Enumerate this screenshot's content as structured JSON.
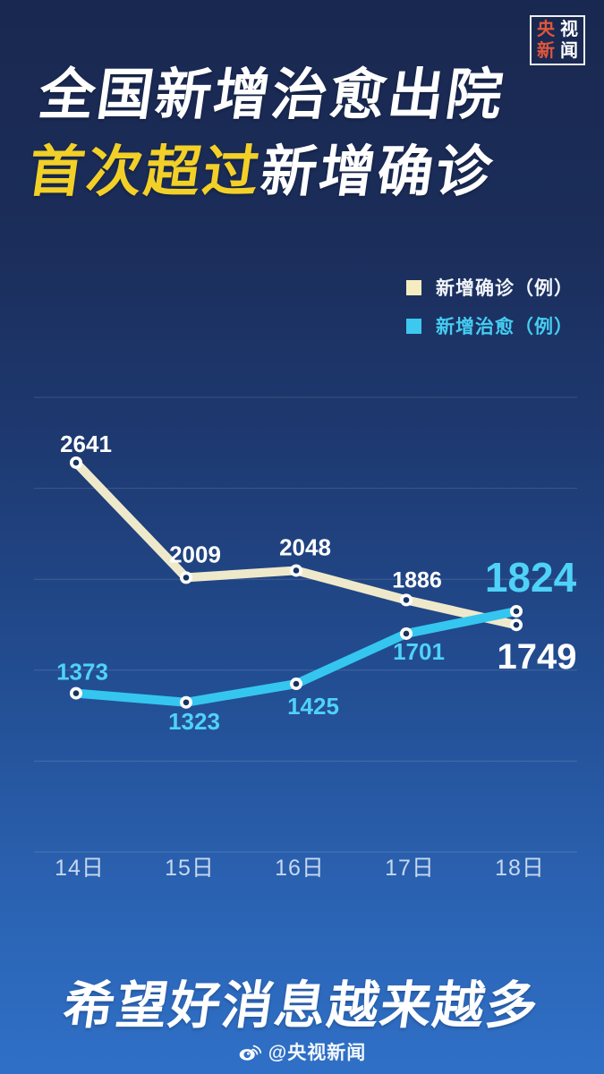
{
  "poster": {
    "logo": {
      "chars": [
        "央",
        "视",
        "新",
        "闻"
      ]
    },
    "title": {
      "line1": "全国新增治愈出院",
      "line2_highlight": "首次超过",
      "line2_rest": "新增确诊"
    },
    "slogan": "希望好消息越来越多",
    "footer": {
      "handle": "@央视新闻",
      "icon": "weibo-icon"
    }
  },
  "legend": {
    "items": [
      {
        "label": "新增确诊（例）",
        "color": "#f5edc0"
      },
      {
        "label": "新增治愈（例）",
        "color": "#3cc8ef"
      }
    ],
    "position": "top-right"
  },
  "chart_data": {
    "type": "line",
    "title": "全国新增治愈出院首次超过新增确诊",
    "categories": [
      "14日",
      "15日",
      "16日",
      "17日",
      "18日"
    ],
    "series": [
      {
        "name": "新增确诊（例）",
        "values": [
          2641,
          2009,
          2048,
          1886,
          1749
        ],
        "color": "#efe9cb",
        "label_color": "#ffffff"
      },
      {
        "name": "新增治愈（例）",
        "values": [
          1373,
          1323,
          1425,
          1701,
          1824
        ],
        "color": "#35c6ef",
        "label_color": "#4fd2f8"
      }
    ],
    "xlabel": "",
    "ylabel": "",
    "ylim": [
      500,
      3000
    ],
    "gridline_values": [
      3000,
      2500,
      2000,
      1500,
      1000,
      500
    ],
    "grid": true,
    "legend_position": "top-right",
    "axis_label_color": "#c6d8f0",
    "annotation_note": "last points emphasized with large labels: 1824 (cyan), 1749 (white)"
  },
  "colors": {
    "background_top": "#192850",
    "background_bottom": "#2f70c7",
    "title_text": "#ffffff",
    "title_highlight": "#f2d028",
    "confirmed_line": "#efe9cb",
    "cured_line": "#35c6ef",
    "logo_red": "#e1563b",
    "marker_inner": "#16345e"
  }
}
